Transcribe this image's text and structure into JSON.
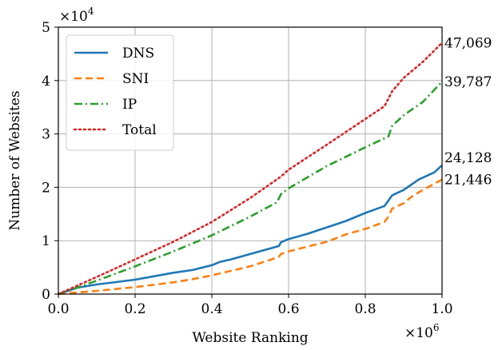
{
  "chart_data": {
    "type": "line",
    "xlabel": "Website Ranking",
    "ylabel": "Number of Websites",
    "xlim": [
      0,
      1000000
    ],
    "ylim": [
      0,
      50000
    ],
    "x_multiplier": "×10",
    "x_multiplier_exp": "6",
    "y_multiplier": "×10",
    "y_multiplier_exp": "4",
    "x_ticks": [
      0,
      200000,
      400000,
      600000,
      800000,
      1000000
    ],
    "x_tick_labels": [
      "0.0",
      "0.2",
      "0.4",
      "0.6",
      "0.8",
      "1.0"
    ],
    "y_ticks": [
      0,
      10000,
      20000,
      30000,
      40000,
      50000
    ],
    "y_tick_labels": [
      "0",
      "1",
      "2",
      "3",
      "4",
      "5"
    ],
    "grid": true,
    "legend_position": "top-left",
    "series": [
      {
        "name": "DNS",
        "color": "#1f77b4",
        "style": "solid",
        "end_label": "24,128",
        "x": [
          0,
          50000,
          100000,
          200000,
          300000,
          350000,
          400000,
          420000,
          450000,
          500000,
          560000,
          575000,
          580000,
          600000,
          650000,
          700000,
          750000,
          800000,
          850000,
          860000,
          870000,
          900000,
          920000,
          940000,
          980000,
          1000000
        ],
        "y": [
          0,
          1200,
          1800,
          2700,
          4000,
          4500,
          5400,
          6000,
          6500,
          7500,
          8700,
          9000,
          9700,
          10300,
          11300,
          12500,
          13700,
          15200,
          16500,
          17500,
          18500,
          19500,
          20500,
          21500,
          22800,
          24128
        ]
      },
      {
        "name": "SNI",
        "color": "#ff7f0e",
        "style": "dashed",
        "end_label": "21,446",
        "x": [
          0,
          50000,
          100000,
          200000,
          300000,
          350000,
          400000,
          500000,
          560000,
          575000,
          580000,
          600000,
          700000,
          750000,
          800000,
          850000,
          860000,
          870000,
          900000,
          920000,
          950000,
          1000000
        ],
        "y": [
          0,
          300,
          600,
          1300,
          2200,
          2800,
          3500,
          5200,
          6600,
          7000,
          7500,
          8000,
          9800,
          11200,
          12200,
          13500,
          14500,
          16000,
          17000,
          18200,
          19500,
          21446
        ]
      },
      {
        "name": "IP",
        "color": "#2ca02c",
        "style": "dashdot",
        "end_label": "39,787",
        "x": [
          0,
          100000,
          200000,
          300000,
          400000,
          500000,
          570000,
          580000,
          600000,
          700000,
          800000,
          860000,
          870000,
          900000,
          950000,
          1000000
        ],
        "y": [
          0,
          2500,
          5200,
          8000,
          11000,
          14500,
          17200,
          18700,
          19800,
          24000,
          27500,
          29500,
          31500,
          33500,
          36000,
          39787
        ]
      },
      {
        "name": "Total",
        "color": "#d62728",
        "style": "dotted",
        "end_label": "47,069",
        "x": [
          0,
          100000,
          200000,
          300000,
          400000,
          500000,
          580000,
          600000,
          700000,
          800000,
          850000,
          870000,
          900000,
          950000,
          1000000
        ],
        "y": [
          0,
          3200,
          6500,
          9800,
          13500,
          18000,
          22000,
          23300,
          28000,
          32800,
          35200,
          38000,
          40500,
          43500,
          47069
        ]
      }
    ]
  }
}
